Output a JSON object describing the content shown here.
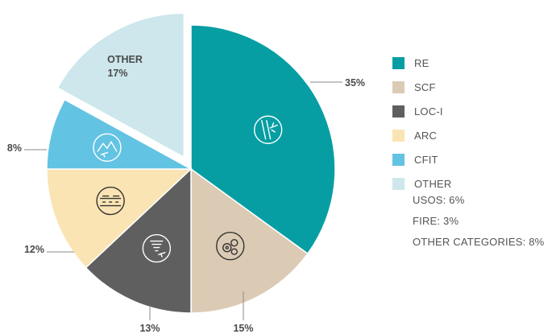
{
  "chart_data": {
    "type": "pie",
    "start": "12 o'clock, clockwise",
    "exploded_slice": "OTHER",
    "slices": [
      {
        "name": "RE",
        "value": 35,
        "label": "35%",
        "color": "#069ea3",
        "icon": "runway-plane-icon"
      },
      {
        "name": "SCF",
        "value": 15,
        "label": "15%",
        "color": "#dccbb4",
        "icon": "gears-icon"
      },
      {
        "name": "LOC-I",
        "value": 13,
        "label": "13%",
        "color": "#5f5f5f",
        "icon": "tornado-plane-icon"
      },
      {
        "name": "ARC",
        "value": 12,
        "label": "12%",
        "color": "#fbe4b3",
        "icon": "runway-contact-icon"
      },
      {
        "name": "CFIT",
        "value": 8,
        "label": "8%",
        "color": "#63c3e3",
        "icon": "mountain-plane-icon"
      },
      {
        "name": "OTHER",
        "value": 17,
        "label": "17%",
        "color": "#cde7ec",
        "icon": ""
      }
    ],
    "other_inner_label": "OTHER",
    "other_inner_value": "17%",
    "legend": {
      "position": "right",
      "entries": [
        {
          "label": "RE",
          "color": "#069ea3"
        },
        {
          "label": "SCF",
          "color": "#dccbb4"
        },
        {
          "label": "LOC-I",
          "color": "#5f5f5f"
        },
        {
          "label": "ARC",
          "color": "#fbe4b3"
        },
        {
          "label": "CFIT",
          "color": "#63c3e3"
        },
        {
          "label": "OTHER",
          "color": "#cde7ec"
        }
      ],
      "notes": [
        "USOS: 6%",
        "FIRE: 3%",
        "OTHER CATEGORIES: 8%"
      ]
    }
  }
}
